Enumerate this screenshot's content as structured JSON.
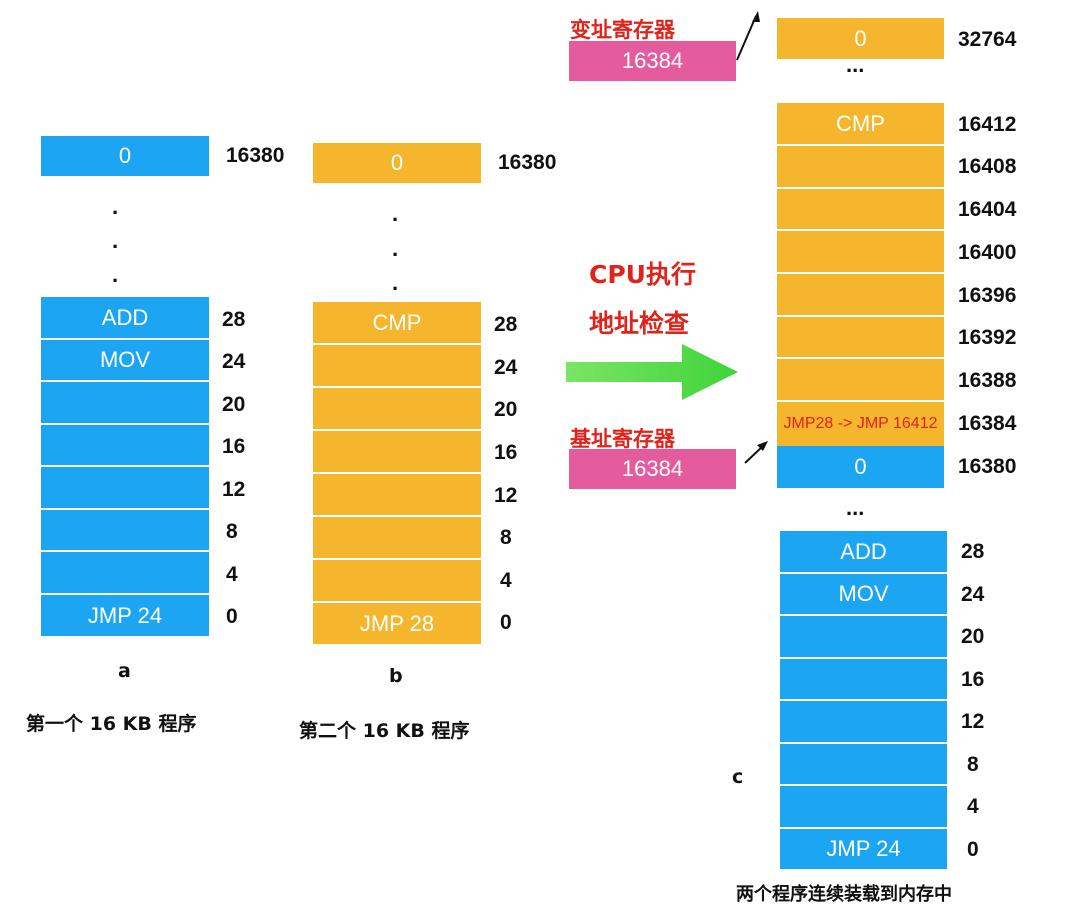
{
  "program_a": {
    "top_cell": "0",
    "top_addr": "16380",
    "cells": [
      "ADD",
      "MOV",
      "",
      "",
      "",
      "",
      "",
      "JMP 24"
    ],
    "addrs": [
      "28",
      "24",
      "20",
      "16",
      "12",
      "8",
      "4",
      "0"
    ],
    "letter": "a",
    "caption": "第一个 16 KB 程序"
  },
  "program_b": {
    "top_cell": "0",
    "top_addr": "16380",
    "cells": [
      "CMP",
      "",
      "",
      "",
      "",
      "",
      "",
      "JMP 28"
    ],
    "addrs": [
      "28",
      "24",
      "20",
      "16",
      "12",
      "8",
      "4",
      "0"
    ],
    "letter": "b",
    "caption": "第二个 16 KB 程序"
  },
  "cpu": {
    "line1": "CPU执行",
    "line2": "地址检查"
  },
  "limit_register": {
    "label": "变址寄存器",
    "value": "16384"
  },
  "base_register": {
    "label": "基址寄存器",
    "value": "16384"
  },
  "memory_c": {
    "top_cell": "0",
    "top_addr": "32764",
    "ellipsis": "...",
    "orange_cells": [
      "CMP",
      "",
      "",
      "",
      "",
      "",
      "",
      ""
    ],
    "orange_addrs": [
      "16412",
      "16408",
      "16404",
      "16400",
      "16396",
      "16392",
      "16388",
      "16384"
    ],
    "jmp_note": "JMP28 -> JMP 16412",
    "boundary_cell": "0",
    "boundary_addr": "16380",
    "blue_cells": [
      "ADD",
      "MOV",
      "",
      "",
      "",
      "",
      "",
      "JMP 24"
    ],
    "blue_addrs": [
      "28",
      "24",
      "20",
      "16",
      "12",
      "8",
      "4",
      "0"
    ],
    "letter": "c",
    "caption": "两个程序连续装载到内存中"
  },
  "colors": {
    "blue": "#1ca5f2",
    "orange": "#f5b52c",
    "pink": "#e45c9e",
    "red_text": "#e0241b",
    "green_arrow": "#3fd43a"
  }
}
